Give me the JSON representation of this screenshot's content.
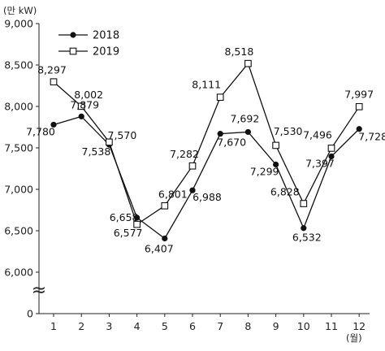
{
  "chart_data": {
    "type": "line",
    "unit_label": "(만 kW)",
    "x_unit_label": "(월)",
    "categories": [
      "1",
      "2",
      "3",
      "4",
      "5",
      "6",
      "7",
      "8",
      "9",
      "10",
      "11",
      "12"
    ],
    "y_ticks": [
      0,
      6000,
      6500,
      7000,
      7500,
      8000,
      8500,
      9000
    ],
    "y_tick_labels": [
      "0",
      "6,000",
      "6,500",
      "7,000",
      "7,500",
      "8,000",
      "8,500",
      "9,000"
    ],
    "ylim": [
      6000,
      9000
    ],
    "axis_break": true,
    "axis_break_symbol": "≈",
    "legend_position": "top-left",
    "grid": false,
    "series": [
      {
        "name": "2018",
        "marker": "filled-circle",
        "color": "#111111",
        "values": [
          7780,
          7879,
          7538,
          6658,
          6407,
          6988,
          7670,
          7692,
          7299,
          6532,
          7397,
          7728
        ],
        "labels": [
          "7,780",
          "7,879",
          "7,538",
          "6,658",
          "6,407",
          "6,988",
          "7,670",
          "7,692",
          "7,299",
          "6,532",
          "7,397",
          "7,728"
        ]
      },
      {
        "name": "2019",
        "marker": "open-square",
        "color": "#111111",
        "values": [
          8297,
          8002,
          7570,
          6577,
          6801,
          7282,
          8111,
          8518,
          7530,
          6828,
          7496,
          7997
        ],
        "labels": [
          "8,297",
          "8,002",
          "7,570",
          "6,577",
          "6,801",
          "7,282",
          "8,111",
          "8,518",
          "7,530",
          "6,828",
          "7,496",
          "7,997"
        ]
      }
    ]
  }
}
